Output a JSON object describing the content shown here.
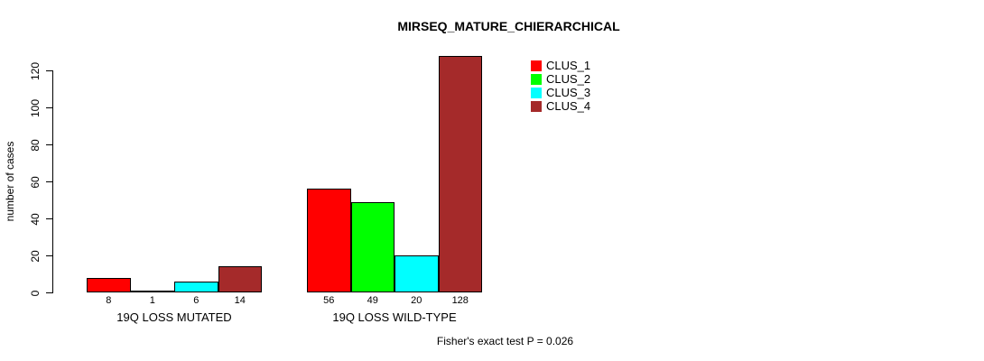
{
  "figure": {
    "title": "MIRSEQ_MATURE_CHIERARCHICAL",
    "ylabel": "number of cases",
    "annotation": "Fisher's exact test P = 0.026"
  },
  "chart_data": {
    "type": "bar",
    "title": "MIRSEQ_MATURE_CHIERARCHICAL",
    "xlabel": "",
    "ylabel": "number of cases",
    "ylim": [
      0,
      120
    ],
    "yticks": [
      0,
      20,
      40,
      60,
      80,
      100,
      120
    ],
    "grid": false,
    "legend_position": "top-right-inside",
    "bar_value_labels_shown": true,
    "categories": [
      "19Q LOSS MUTATED",
      "19Q LOSS WILD-TYPE"
    ],
    "series": [
      {
        "name": "CLUS_1",
        "color": "#ff0000",
        "values": [
          8,
          56
        ]
      },
      {
        "name": "CLUS_2",
        "color": "#00ff00",
        "values": [
          1,
          49
        ]
      },
      {
        "name": "CLUS_3",
        "color": "#00ffff",
        "values": [
          6,
          20
        ]
      },
      {
        "name": "CLUS_4",
        "color": "#a52a2a",
        "values": [
          14,
          128
        ]
      }
    ],
    "annotation": "Fisher's exact test P = 0.026",
    "text_color": "#000000",
    "axis_color": "#000000",
    "background_color": "#ffffff"
  }
}
